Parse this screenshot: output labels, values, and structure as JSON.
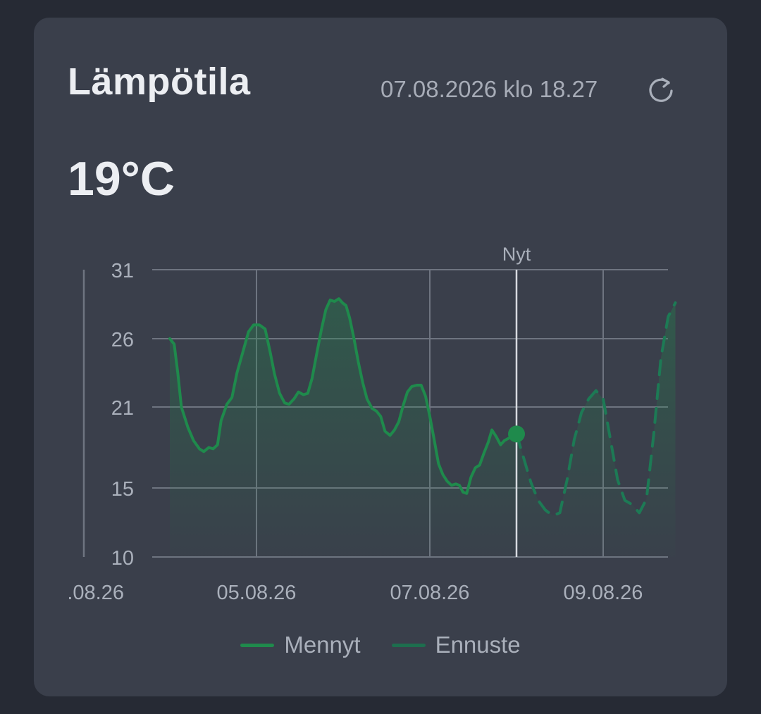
{
  "card": {
    "title": "Lämpötila",
    "timestamp": "07.08.2026 klo 18.27",
    "current_value": "19°C"
  },
  "icons": {
    "refresh": "refresh-icon"
  },
  "legend": {
    "past_label": "Mennyt",
    "forecast_label": "Ennuste"
  },
  "colors": {
    "past": "#1f8a4c",
    "forecast": "#1d7a55",
    "now_marker": "#1f8a4c",
    "grid": "#6e7480",
    "text": "#aab0bb"
  },
  "chart_data": {
    "type": "area",
    "now_label": "Nyt",
    "now_x": 60,
    "y_ticks": [
      10,
      15,
      21,
      26,
      31
    ],
    "x_ticks": [
      {
        "x": 0,
        "label": ".08.26"
      },
      {
        "x": 24,
        "label": "05.08.26"
      },
      {
        "x": 48,
        "label": "07.08.26"
      },
      {
        "x": 72,
        "label": "09.08.26"
      }
    ],
    "xlim": [
      -12,
      84
    ],
    "ylim": [
      10,
      31
    ],
    "series": [
      {
        "name": "Mennyt",
        "style": "solid",
        "points": [
          [
            12.0,
            26.0
          ],
          [
            12.6,
            25.6
          ],
          [
            13.1,
            23.5
          ],
          [
            13.6,
            21.0
          ],
          [
            14.5,
            19.5
          ],
          [
            15.3,
            18.5
          ],
          [
            16.1,
            17.9
          ],
          [
            16.7,
            17.7
          ],
          [
            17.4,
            18.0
          ],
          [
            18.0,
            17.9
          ],
          [
            18.6,
            18.2
          ],
          [
            19.1,
            20.0
          ],
          [
            19.9,
            21.2
          ],
          [
            20.6,
            21.7
          ],
          [
            21.3,
            23.5
          ],
          [
            22.1,
            25.0
          ],
          [
            22.9,
            26.5
          ],
          [
            23.6,
            27.0
          ],
          [
            24.4,
            27.0
          ],
          [
            25.2,
            26.7
          ],
          [
            25.9,
            25.0
          ],
          [
            26.5,
            23.4
          ],
          [
            27.2,
            22.0
          ],
          [
            27.9,
            21.3
          ],
          [
            28.5,
            21.2
          ],
          [
            29.2,
            21.6
          ],
          [
            29.8,
            22.1
          ],
          [
            30.5,
            21.9
          ],
          [
            31.1,
            22.0
          ],
          [
            31.7,
            23.1
          ],
          [
            32.3,
            24.8
          ],
          [
            33.0,
            26.7
          ],
          [
            33.6,
            28.1
          ],
          [
            34.2,
            28.8
          ],
          [
            34.8,
            28.7
          ],
          [
            35.4,
            28.9
          ],
          [
            35.9,
            28.6
          ],
          [
            36.4,
            28.4
          ],
          [
            36.9,
            27.5
          ],
          [
            37.5,
            26.0
          ],
          [
            38.1,
            24.3
          ],
          [
            38.7,
            22.8
          ],
          [
            39.3,
            21.6
          ],
          [
            40.0,
            20.9
          ],
          [
            40.6,
            20.7
          ],
          [
            41.2,
            20.3
          ],
          [
            41.8,
            19.2
          ],
          [
            42.5,
            18.9
          ],
          [
            43.1,
            19.3
          ],
          [
            43.7,
            19.9
          ],
          [
            44.3,
            21.1
          ],
          [
            44.9,
            22.1
          ],
          [
            45.5,
            22.5
          ],
          [
            46.2,
            22.6
          ],
          [
            46.8,
            22.6
          ],
          [
            47.4,
            21.8
          ],
          [
            48.0,
            20.3
          ],
          [
            48.6,
            18.6
          ],
          [
            49.2,
            16.8
          ],
          [
            49.8,
            16.0
          ],
          [
            50.4,
            15.5
          ],
          [
            51.0,
            15.2
          ],
          [
            51.6,
            15.3
          ],
          [
            52.1,
            15.2
          ],
          [
            52.6,
            14.7
          ],
          [
            53.1,
            14.6
          ],
          [
            53.7,
            15.8
          ],
          [
            54.3,
            16.5
          ],
          [
            54.9,
            16.7
          ],
          [
            55.5,
            17.6
          ],
          [
            56.1,
            18.4
          ],
          [
            56.6,
            19.3
          ],
          [
            57.2,
            18.8
          ],
          [
            57.8,
            18.2
          ],
          [
            58.3,
            18.5
          ],
          [
            60.0,
            19.0
          ]
        ]
      },
      {
        "name": "Ennuste",
        "style": "dashed",
        "points": [
          [
            60.0,
            19.0
          ],
          [
            61.0,
            17.2
          ],
          [
            62.0,
            15.4
          ],
          [
            63.0,
            14.1
          ],
          [
            64.0,
            13.4
          ],
          [
            65.0,
            13.0
          ],
          [
            66.0,
            13.2
          ],
          [
            67.0,
            15.6
          ],
          [
            68.0,
            18.6
          ],
          [
            69.0,
            20.6
          ],
          [
            70.0,
            21.6
          ],
          [
            71.0,
            22.2
          ],
          [
            72.0,
            21.6
          ],
          [
            73.0,
            18.6
          ],
          [
            74.0,
            15.6
          ],
          [
            75.0,
            14.1
          ],
          [
            76.0,
            13.8
          ],
          [
            77.0,
            13.2
          ],
          [
            78.0,
            14.2
          ],
          [
            79.0,
            19.0
          ],
          [
            80.0,
            24.6
          ],
          [
            81.0,
            27.6
          ],
          [
            82.0,
            28.6
          ]
        ]
      }
    ]
  }
}
